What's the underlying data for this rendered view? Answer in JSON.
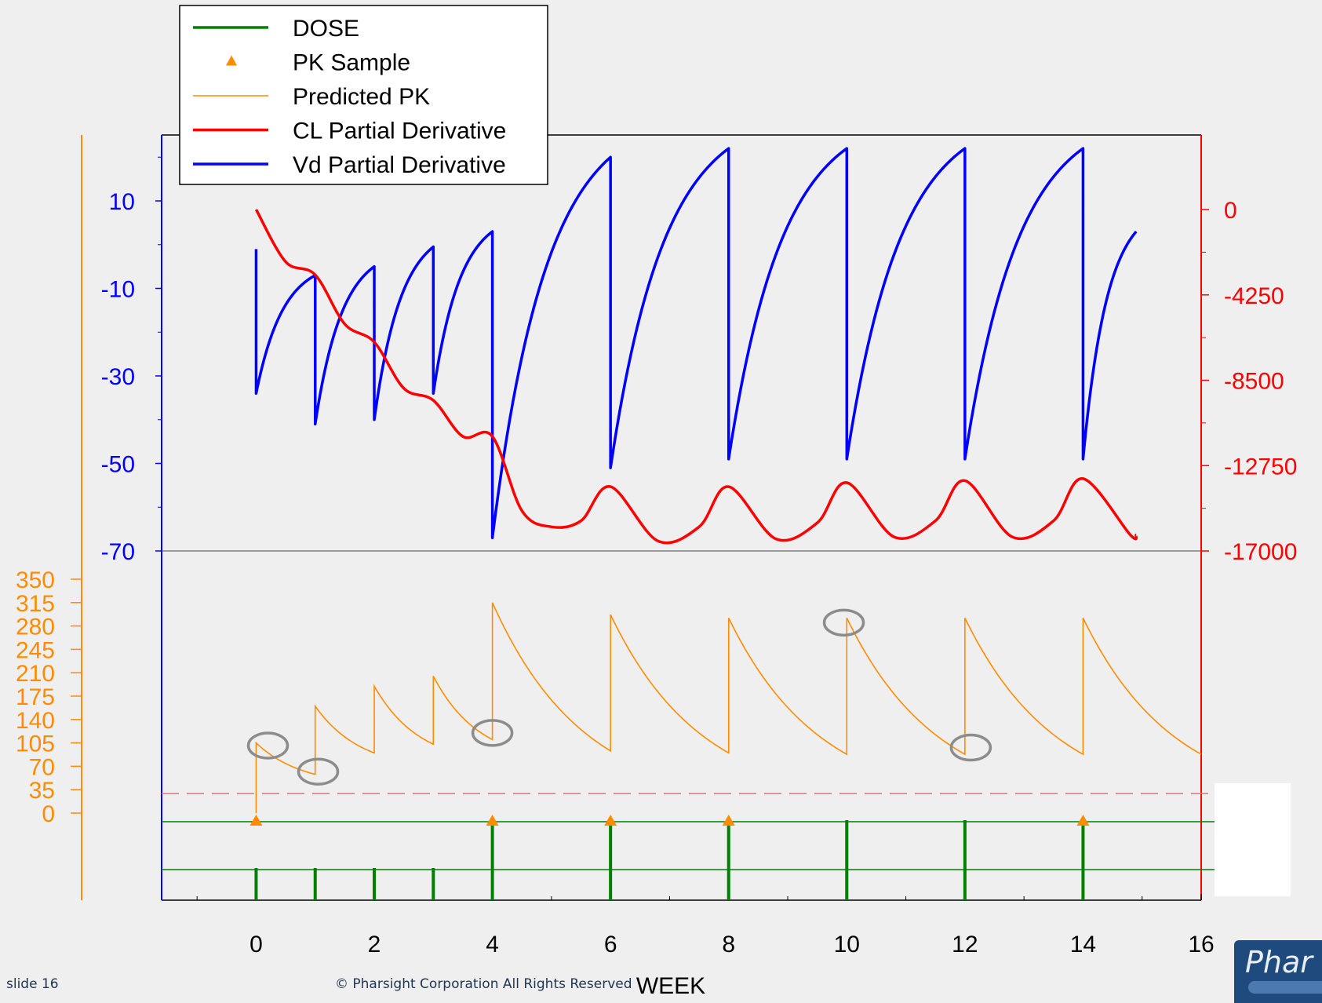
{
  "chart_data": {
    "type": "line",
    "xlabel": "WEEK",
    "xlim": [
      -1.6,
      16
    ],
    "x_ticks": [
      0,
      2,
      4,
      6,
      8,
      10,
      12,
      14,
      16
    ],
    "left_axis": {
      "ticks": [
        10,
        -10,
        -30,
        -50,
        -70
      ],
      "ylim": [
        -70,
        22
      ],
      "color": "#0000ff"
    },
    "right_axis": {
      "ticks": [
        0,
        -4250,
        -8500,
        -12750,
        -17000
      ],
      "ylim": [
        -17000,
        2800
      ],
      "color": "#ff0000"
    },
    "pk_axis": {
      "ticks": [
        350,
        315,
        280,
        245,
        210,
        175,
        140,
        105,
        70,
        35,
        0
      ],
      "ylim": [
        0,
        350
      ],
      "color": "#ff8c00"
    },
    "legend": {
      "placement": "top-left",
      "items": [
        {
          "label": "DOSE",
          "color": "#008000",
          "style": "line"
        },
        {
          "label": "PK Sample",
          "color": "#ff8c00",
          "style": "triangle"
        },
        {
          "label": "Predicted PK",
          "color": "#ff8c00",
          "style": "thin-line"
        },
        {
          "label": "CL Partial Derivative",
          "color": "#ff0000",
          "style": "line"
        },
        {
          "label": "Vd Partial Derivative",
          "color": "#0000ff",
          "style": "line"
        }
      ]
    },
    "series": [
      {
        "name": "Vd Partial Derivative",
        "axis": "left",
        "segments": [
          {
            "x0": 0,
            "x1": 1,
            "start": -34,
            "end": -7
          },
          {
            "x0": 1,
            "x1": 2,
            "start": -41,
            "end": -5
          },
          {
            "x0": 2,
            "x1": 3,
            "start": -40,
            "end": -0.5
          },
          {
            "x0": 3,
            "x1": 4,
            "start": -34,
            "end": 3
          },
          {
            "x0": 4,
            "x1": 6,
            "start": -67,
            "end": 20
          },
          {
            "x0": 6,
            "x1": 8,
            "start": -51,
            "end": 22
          },
          {
            "x0": 8,
            "x1": 10,
            "start": -49,
            "end": 22
          },
          {
            "x0": 10,
            "x1": 12,
            "start": -49,
            "end": 22
          },
          {
            "x0": 12,
            "x1": 14,
            "start": -49,
            "end": 22
          },
          {
            "x0": 14,
            "x1": 14.9,
            "start": -49,
            "end": 3
          }
        ],
        "initial": -1
      },
      {
        "name": "CL Partial Derivative",
        "axis": "right",
        "points": [
          [
            0,
            0
          ],
          [
            0.5,
            -2600
          ],
          [
            1,
            -3250
          ],
          [
            1.5,
            -5700
          ],
          [
            2,
            -6600
          ],
          [
            2.5,
            -8900
          ],
          [
            3,
            -9500
          ],
          [
            3.5,
            -11300
          ],
          [
            4,
            -11300
          ],
          [
            4.5,
            -15000
          ],
          [
            5,
            -15800
          ],
          [
            5.5,
            -15500
          ],
          [
            6,
            -13800
          ],
          [
            6.8,
            -16500
          ],
          [
            7.5,
            -15800
          ],
          [
            8,
            -13800
          ],
          [
            8.8,
            -16400
          ],
          [
            9.5,
            -15600
          ],
          [
            10,
            -13600
          ],
          [
            10.8,
            -16300
          ],
          [
            11.5,
            -15500
          ],
          [
            12,
            -13500
          ],
          [
            12.8,
            -16300
          ],
          [
            13.5,
            -15500
          ],
          [
            14,
            -13400
          ],
          [
            14.8,
            -16200
          ],
          [
            14.9,
            -16200
          ]
        ]
      },
      {
        "name": "Predicted PK",
        "axis": "pk",
        "segments": [
          {
            "x0": 0,
            "x1": 1,
            "start": 105,
            "end": 58
          },
          {
            "x0": 1,
            "x1": 2,
            "start": 160,
            "end": 90
          },
          {
            "x0": 2,
            "x1": 3,
            "start": 190,
            "end": 103
          },
          {
            "x0": 3,
            "x1": 4,
            "start": 205,
            "end": 110
          },
          {
            "x0": 4,
            "x1": 6,
            "start": 315,
            "end": 93
          },
          {
            "x0": 6,
            "x1": 8,
            "start": 297,
            "end": 90
          },
          {
            "x0": 8,
            "x1": 10,
            "start": 292,
            "end": 88
          },
          {
            "x0": 10,
            "x1": 12,
            "start": 292,
            "end": 88
          },
          {
            "x0": 12,
            "x1": 14,
            "start": 292,
            "end": 88
          },
          {
            "x0": 14,
            "x1": 16,
            "start": 292,
            "end": 88
          }
        ],
        "initial": 0
      },
      {
        "name": "PK Sample",
        "axis": "pk",
        "x": [
          0,
          4,
          6,
          8,
          14
        ]
      },
      {
        "name": "DOSE",
        "small": [
          0,
          1,
          2,
          3
        ],
        "large": [
          4,
          6,
          8,
          10,
          12,
          14
        ]
      }
    ],
    "threshold_pk": 29,
    "highlight_circles": [
      {
        "x": 0.2,
        "y": 101
      },
      {
        "x": 1.05,
        "y": 62
      },
      {
        "x": 4.0,
        "y": 120
      },
      {
        "x": 9.95,
        "y": 285
      },
      {
        "x": 12.1,
        "y": 98
      }
    ]
  },
  "footer": {
    "slide": "slide 16",
    "copyright": "© Pharsight Corporation All Rights Reserved",
    "logo": "Phar"
  }
}
